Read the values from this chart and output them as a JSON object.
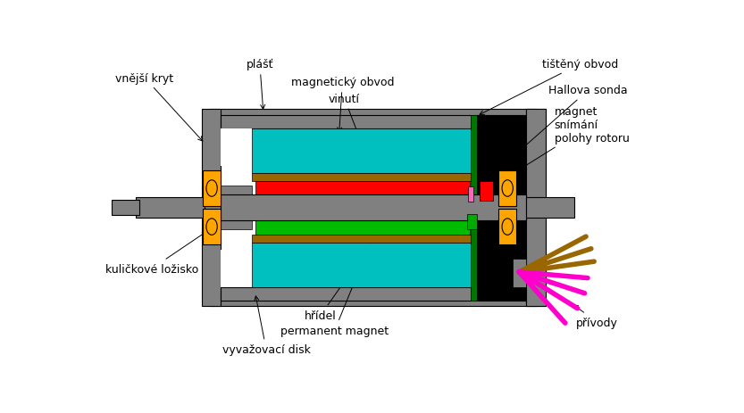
{
  "labels": {
    "vnejsi_kryt": "vnější kryt",
    "plast": "plášť",
    "mag_obvod": "magnetický obvod",
    "vinuti": "vinutí",
    "kulickove": "kuličkové ložisko",
    "hridel": "hřídel",
    "permanent": "permanent magnet",
    "vyvazovaci": "vyvažovací disk",
    "tisteny": "tištěný obvod",
    "hallova": "Hallova sonda",
    "magnet_snimani": "magnet\nsnímání\npolohy rotoru",
    "privody": "přívody"
  },
  "colors": {
    "gray": "#808080",
    "light_gray": "#AAAAAA",
    "dark_gray": "#555555",
    "teal": "#00BFBF",
    "red": "#FF0000",
    "green": "#00BB00",
    "orange": "#FFA500",
    "brown": "#996600",
    "black": "#000000",
    "white": "#FFFFFF",
    "magenta": "#FF00CC",
    "dark_green": "#00AA00",
    "pink": "#FF66BB"
  }
}
